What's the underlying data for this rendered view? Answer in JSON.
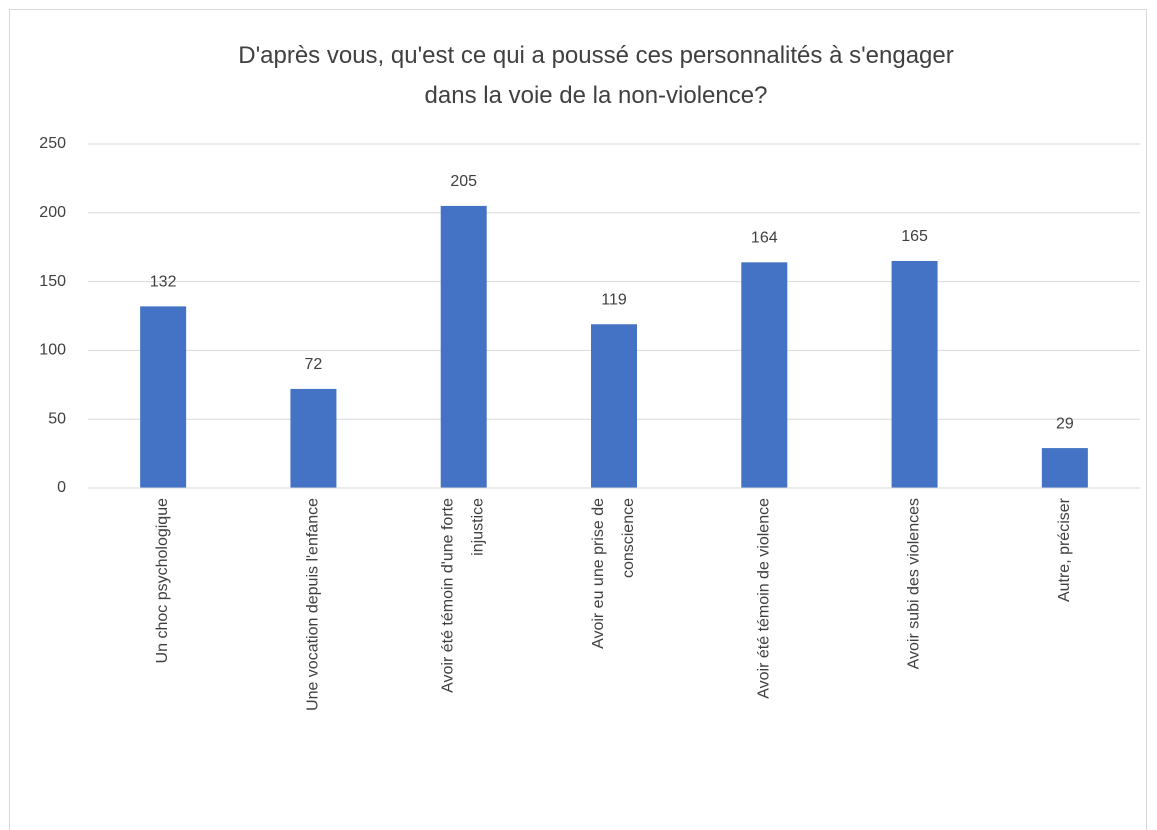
{
  "chart_data": {
    "type": "bar",
    "title": "D'après vous, qu'est ce qui a poussé ces personnalités à s'engager dans la voie de la non-violence?",
    "categories": [
      "Un choc psychologique",
      "Une vocation depuis l'enfance",
      "Avoir été témoin d'une forte injustice",
      "Avoir eu une prise de conscience",
      "Avoir été témoin de violence",
      "Avoir subi des violences",
      "Autre, préciser"
    ],
    "values": [
      132,
      72,
      205,
      119,
      164,
      165,
      29
    ],
    "color": "#4472c4",
    "ylim": [
      0,
      250
    ],
    "yticks": [
      0,
      50,
      100,
      150,
      200,
      250
    ],
    "grid": true
  }
}
